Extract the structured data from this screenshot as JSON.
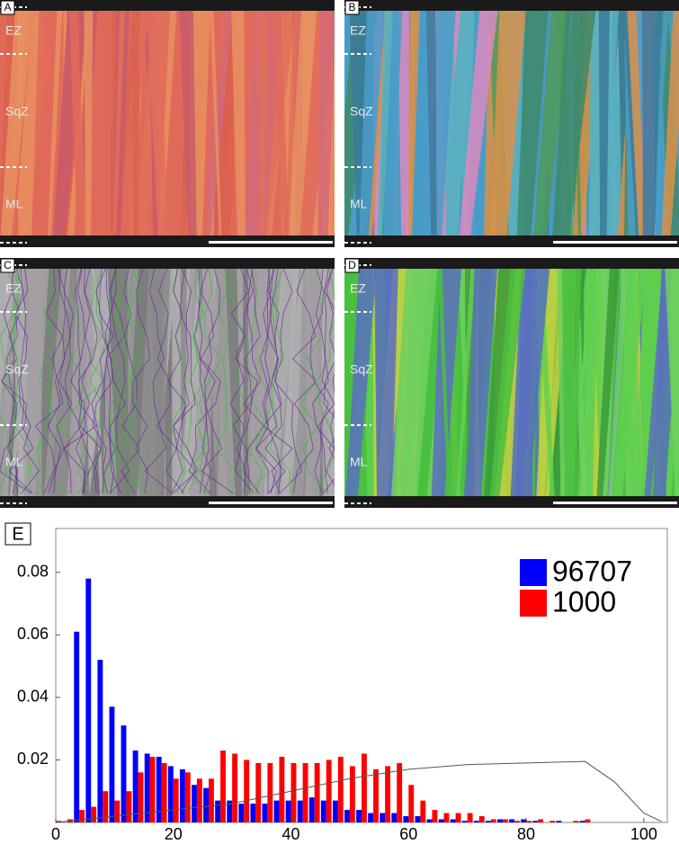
{
  "panels": [
    {
      "label": "A",
      "zones": [
        "EZ",
        "SqZ",
        "ML"
      ]
    },
    {
      "label": "B",
      "zones": [
        "EZ",
        "SqZ",
        "ML"
      ]
    },
    {
      "label": "C",
      "zones": [
        "EZ",
        "SqZ",
        "ML"
      ]
    },
    {
      "label": "D",
      "zones": [
        "EZ",
        "SqZ",
        "ML"
      ]
    }
  ],
  "chart_data": {
    "type": "bar",
    "panel_label": "E",
    "x": [
      0,
      2,
      4,
      6,
      8,
      10,
      12,
      14,
      16,
      18,
      20,
      22,
      24,
      26,
      28,
      30,
      32,
      34,
      36,
      38,
      40,
      42,
      44,
      46,
      48,
      50,
      52,
      54,
      56,
      58,
      60,
      62,
      64,
      66,
      68,
      70,
      72,
      74,
      76,
      78,
      80,
      82,
      84,
      86,
      88,
      90
    ],
    "series": [
      {
        "name": "96707",
        "color": "#0000ff",
        "values": [
          0,
          0,
          0.061,
          0.078,
          0.052,
          0.037,
          0.031,
          0.023,
          0.022,
          0.021,
          0.018,
          0.017,
          0.012,
          0.011,
          0.007,
          0.007,
          0.006,
          0.006,
          0.006,
          0.007,
          0.007,
          0.007,
          0.008,
          0.007,
          0.007,
          0.004,
          0.004,
          0.003,
          0.003,
          0.003,
          0.002,
          0.002,
          0.001,
          0.001,
          0.001,
          0.0005,
          0.0005,
          0.0005,
          0.001,
          0.001,
          0.001,
          0.0005,
          0,
          0.0005,
          0,
          0.0005
        ]
      },
      {
        "name": "1000",
        "color": "#ff0000",
        "values": [
          0.0005,
          0.001,
          0.004,
          0.005,
          0.01,
          0.007,
          0.01,
          0.016,
          0.021,
          0.019,
          0.014,
          0.016,
          0.014,
          0.014,
          0.023,
          0.022,
          0.02,
          0.019,
          0.019,
          0.021,
          0.019,
          0.019,
          0.019,
          0.02,
          0.021,
          0.018,
          0.022,
          0.017,
          0.018,
          0.019,
          0.012,
          0.007,
          0.004,
          0.003,
          0.003,
          0.003,
          0.002,
          0.001,
          0.001,
          0.0005,
          0.0005,
          0.001,
          0.0005,
          0,
          0.0005,
          0.001
        ]
      }
    ],
    "curve": {
      "color": "#555555",
      "x": [
        0,
        10,
        20,
        30,
        40,
        50,
        60,
        70,
        80,
        90,
        95,
        100,
        103
      ],
      "values": [
        0,
        0.002,
        0.004,
        0.006,
        0.01,
        0.014,
        0.017,
        0.0185,
        0.019,
        0.0195,
        0.013,
        0.003,
        0.0003
      ]
    },
    "xlim": [
      0,
      104
    ],
    "ylim": [
      0,
      0.094
    ],
    "xticks": [
      0,
      20,
      40,
      60,
      80,
      100
    ],
    "yticks": [
      0.02,
      0.04,
      0.06,
      0.08
    ],
    "legend": "top-right"
  }
}
